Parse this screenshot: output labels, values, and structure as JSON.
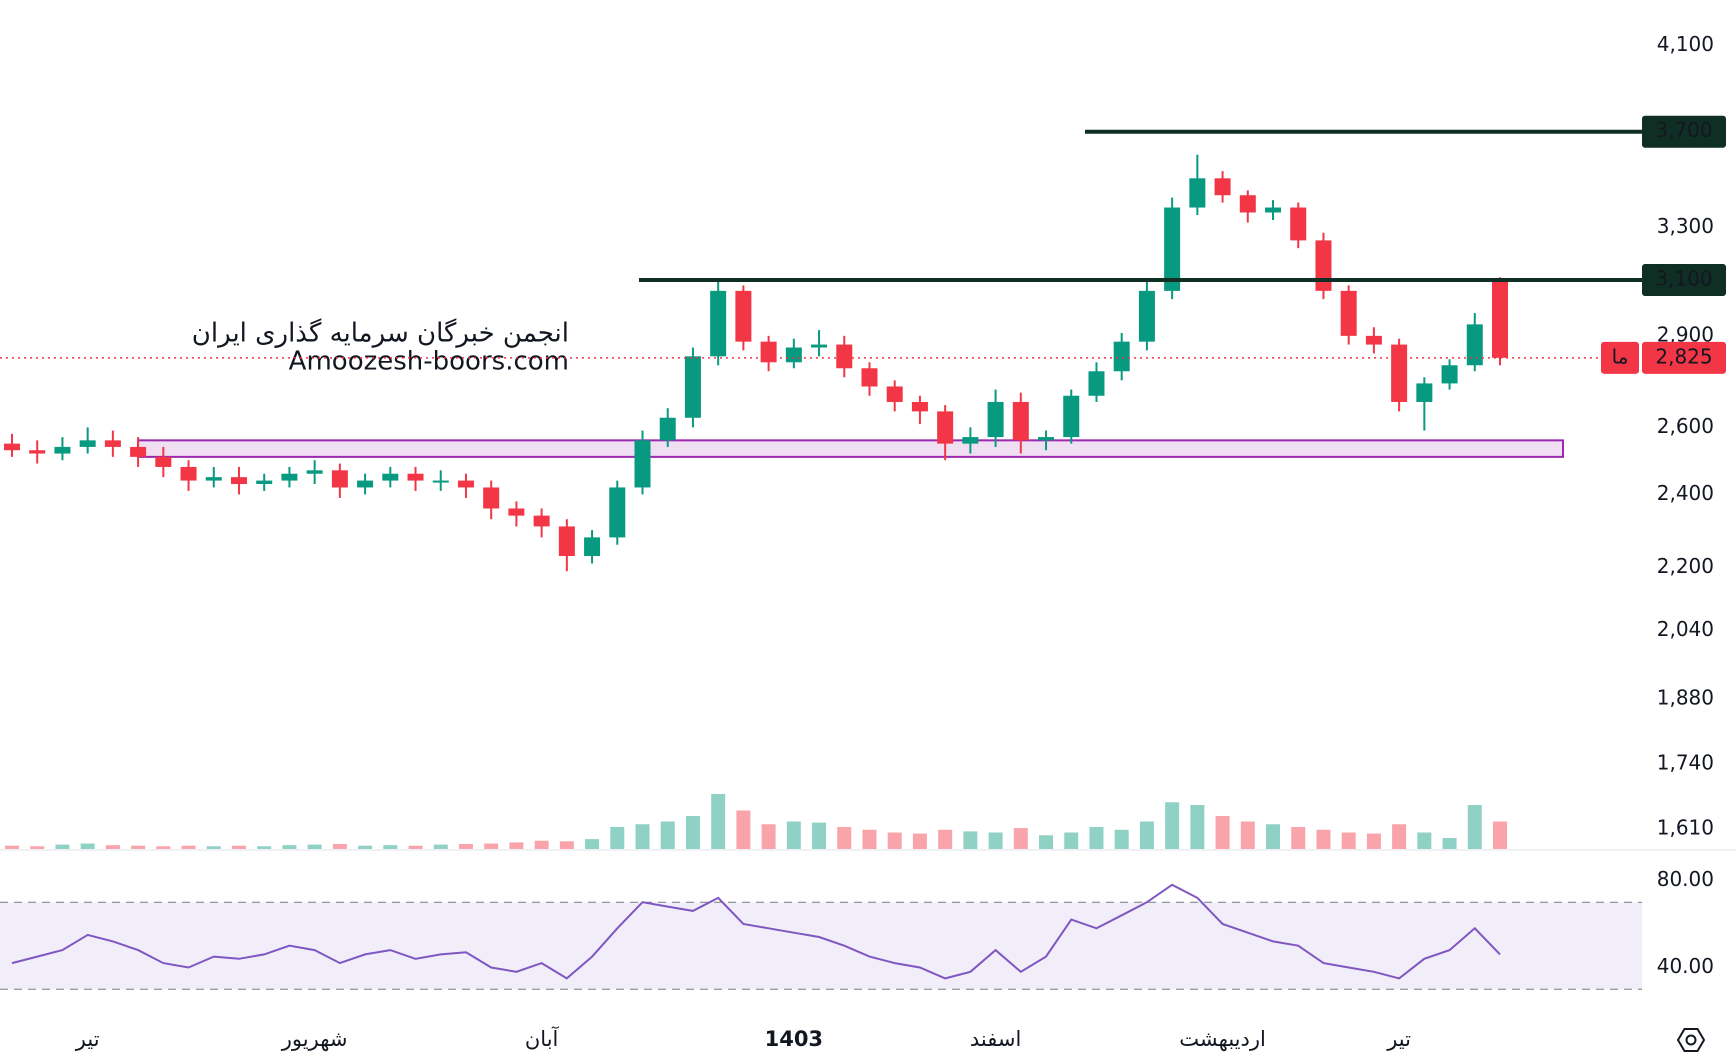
{
  "chart_data": {
    "type": "candlestick",
    "log_scale": true,
    "colors": {
      "up": "#089981",
      "down": "#f23645",
      "level": "#0f2f24",
      "zone": "#9c27b0",
      "rsi": "#7e57c2"
    },
    "watermark": [
      "انجمن خبرگان سرمایه گذاری ایران",
      "Amoozesh-boors.com"
    ],
    "categories": [
      null,
      null,
      null,
      "تیر",
      null,
      null,
      null,
      null,
      null,
      null,
      null,
      null,
      "شهریور",
      null,
      null,
      null,
      null,
      null,
      null,
      null,
      null,
      "آبان",
      null,
      null,
      null,
      null,
      null,
      null,
      null,
      null,
      null,
      "1403",
      null,
      null,
      null,
      null,
      null,
      null,
      null,
      "اسفند",
      null,
      null,
      null,
      null,
      null,
      null,
      null,
      null,
      "اردیبهشت",
      null,
      null,
      null,
      null,
      null,
      null,
      "تیر",
      null,
      null,
      null,
      null
    ],
    "open": [
      2550,
      2530,
      2520,
      2540,
      2560,
      2540,
      2510,
      2480,
      2440,
      2450,
      2430,
      2440,
      2460,
      2470,
      2420,
      2440,
      2460,
      2440,
      2440,
      2420,
      2360,
      2340,
      2310,
      2230,
      2280,
      2420,
      2560,
      2630,
      2830,
      3060,
      2880,
      2810,
      2860,
      2870,
      2790,
      2730,
      2680,
      2650,
      2550,
      2570,
      2680,
      2560,
      2570,
      2700,
      2780,
      2880,
      3060,
      3380,
      3500,
      3430,
      3360,
      3380,
      3250,
      3060,
      2900,
      2870,
      2680,
      2740,
      2800,
      3100
    ],
    "high": [
      2580,
      2560,
      2570,
      2600,
      2590,
      2570,
      2540,
      2500,
      2480,
      2480,
      2460,
      2480,
      2500,
      2490,
      2460,
      2480,
      2480,
      2470,
      2460,
      2440,
      2380,
      2360,
      2330,
      2300,
      2440,
      2590,
      2660,
      2860,
      3100,
      3080,
      2900,
      2890,
      2920,
      2900,
      2810,
      2750,
      2700,
      2670,
      2600,
      2720,
      2710,
      2590,
      2720,
      2810,
      2910,
      3100,
      3420,
      3600,
      3530,
      3450,
      3410,
      3400,
      3280,
      3080,
      2930,
      2890,
      2760,
      2820,
      2980,
      3110
    ],
    "low": [
      2510,
      2490,
      2500,
      2520,
      2510,
      2480,
      2450,
      2410,
      2420,
      2400,
      2410,
      2420,
      2430,
      2390,
      2400,
      2420,
      2410,
      2410,
      2390,
      2330,
      2310,
      2280,
      2190,
      2210,
      2260,
      2400,
      2540,
      2600,
      2800,
      2850,
      2780,
      2790,
      2830,
      2760,
      2700,
      2650,
      2610,
      2500,
      2520,
      2540,
      2520,
      2530,
      2550,
      2680,
      2750,
      2850,
      3030,
      3350,
      3400,
      3320,
      3330,
      3220,
      3030,
      2870,
      2840,
      2650,
      2590,
      2720,
      2780,
      2800
    ],
    "close": [
      2530,
      2520,
      2540,
      2560,
      2540,
      2510,
      2480,
      2440,
      2450,
      2430,
      2440,
      2460,
      2470,
      2420,
      2440,
      2460,
      2440,
      2440,
      2420,
      2360,
      2340,
      2310,
      2230,
      2280,
      2420,
      2560,
      2630,
      2830,
      3060,
      2880,
      2810,
      2860,
      2870,
      2790,
      2730,
      2680,
      2650,
      2550,
      2570,
      2680,
      2560,
      2570,
      2700,
      2780,
      2880,
      3060,
      3380,
      3500,
      3430,
      3360,
      3380,
      3250,
      3060,
      2900,
      2870,
      2680,
      2740,
      2800,
      2940,
      2825
    ],
    "ylim": [
      1570,
      4330
    ],
    "yticks": [
      {
        "value": 4100,
        "label": "4,100"
      },
      {
        "value": 3300,
        "label": "3,300"
      },
      {
        "value": 2900,
        "label": "2,900"
      },
      {
        "value": 2600,
        "label": "2,600"
      },
      {
        "value": 2400,
        "label": "2,400"
      },
      {
        "value": 2200,
        "label": "2,200"
      },
      {
        "value": 2040,
        "label": "2,040"
      },
      {
        "value": 1880,
        "label": "1,880"
      },
      {
        "value": 1740,
        "label": "1,740"
      },
      {
        "value": 1610,
        "label": "1,610"
      }
    ],
    "levels": [
      {
        "value": 3700,
        "label": "3,700"
      },
      {
        "value": 3100,
        "label": "3,100"
      }
    ],
    "last_price": {
      "value": 2825,
      "label": "2,825",
      "tag": "ما"
    },
    "zone": {
      "low": 2510,
      "high": 2560
    },
    "volume": [
      6,
      5,
      8,
      10,
      7,
      6,
      5,
      6,
      5,
      6,
      5,
      7,
      8,
      9,
      6,
      7,
      6,
      8,
      9,
      10,
      12,
      15,
      14,
      18,
      40,
      45,
      50,
      60,
      100,
      70,
      45,
      50,
      48,
      40,
      35,
      30,
      28,
      35,
      32,
      30,
      38,
      25,
      30,
      40,
      35,
      50,
      85,
      80,
      60,
      50,
      45,
      40,
      35,
      30,
      28,
      45,
      30,
      20,
      80,
      50
    ],
    "rsi": {
      "values": [
        42,
        45,
        48,
        55,
        52,
        48,
        42,
        40,
        45,
        44,
        46,
        50,
        48,
        42,
        46,
        48,
        44,
        46,
        47,
        40,
        38,
        42,
        35,
        45,
        58,
        70,
        68,
        66,
        72,
        60,
        58,
        56,
        54,
        50,
        45,
        42,
        40,
        35,
        38,
        48,
        38,
        45,
        62,
        58,
        64,
        70,
        78,
        72,
        60,
        56,
        52,
        50,
        42,
        40,
        38,
        35,
        44,
        48,
        58,
        46
      ],
      "ylim": [
        20,
        94
      ],
      "yticks": [
        {
          "value": 80,
          "label": "80.00"
        },
        {
          "value": 40,
          "label": "40.00"
        }
      ],
      "bands": [
        30,
        70
      ]
    }
  }
}
